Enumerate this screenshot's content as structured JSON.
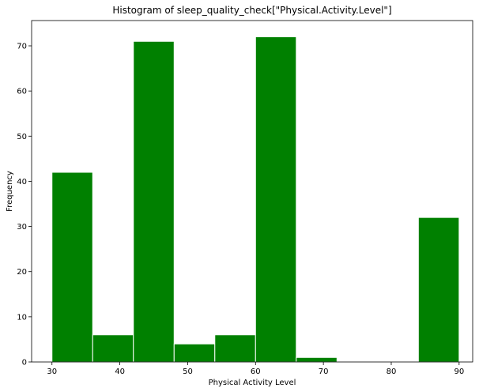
{
  "chart_data": {
    "type": "bar",
    "title": "Histogram of sleep_quality_check[\"Physical.Activity.Level\"]",
    "xlabel": "Physical Activity Level",
    "ylabel": "Frequency",
    "xlim": [
      27,
      92
    ],
    "ylim": [
      0,
      75.6
    ],
    "xticks": [
      30,
      40,
      50,
      60,
      70,
      80,
      90
    ],
    "yticks": [
      0,
      10,
      20,
      30,
      40,
      50,
      60,
      70
    ],
    "bin_edges": [
      30,
      36,
      42,
      48,
      54,
      60,
      66,
      72,
      78,
      84,
      90
    ],
    "values": [
      42,
      6,
      71,
      4,
      6,
      72,
      1,
      0,
      0,
      32
    ],
    "grid": false,
    "bar_color": "#008000",
    "edge_color": "#ffffff"
  }
}
